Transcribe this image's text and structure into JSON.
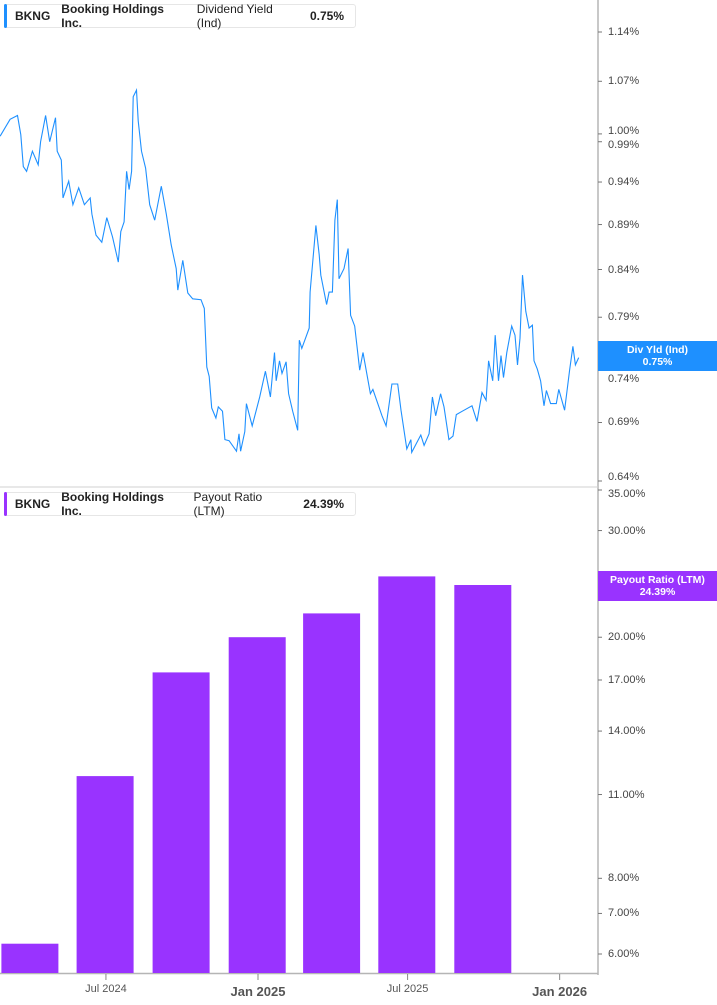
{
  "chart_data": [
    {
      "type": "line",
      "legend": {
        "ticker": "BKNG",
        "company": "Booking Holdings Inc.",
        "metric": "Dividend Yield (Ind)",
        "value": "0.75%"
      },
      "last_value_tag": {
        "label": "Div Yld (Ind)",
        "value": "0.75%"
      },
      "color": "#1e90ff",
      "y_scale": "log",
      "ylim": [
        0.64,
        1.14
      ],
      "y_ticks": [
        "1.14%",
        "1.07%",
        "1.00%",
        "0.99%",
        "0.94%",
        "0.89%",
        "0.84%",
        "0.79%",
        "0.74%",
        "0.69%",
        "0.64%"
      ],
      "y_tick_values": [
        1.14,
        1.07,
        1.0,
        0.99,
        0.94,
        0.89,
        0.84,
        0.79,
        0.74,
        0.69,
        0.64
      ],
      "grid": false,
      "series": [
        {
          "points": [
            [
              "2024-02-24",
              0.997
            ],
            [
              "2024-03-07",
              1.019
            ],
            [
              "2024-03-16",
              1.024
            ],
            [
              "2024-03-20",
              0.999
            ],
            [
              "2024-03-23",
              0.959
            ],
            [
              "2024-03-27",
              0.953
            ],
            [
              "2024-04-03",
              0.978
            ],
            [
              "2024-04-10",
              0.961
            ],
            [
              "2024-04-13",
              0.99
            ],
            [
              "2024-04-19",
              1.024
            ],
            [
              "2024-04-24",
              0.99
            ],
            [
              "2024-05-01",
              1.021
            ],
            [
              "2024-05-03",
              0.978
            ],
            [
              "2024-05-08",
              0.967
            ],
            [
              "2024-05-10",
              0.921
            ],
            [
              "2024-05-17",
              0.941
            ],
            [
              "2024-05-22",
              0.913
            ],
            [
              "2024-05-29",
              0.933
            ],
            [
              "2024-06-05",
              0.913
            ],
            [
              "2024-06-12",
              0.921
            ],
            [
              "2024-06-14",
              0.902
            ],
            [
              "2024-06-19",
              0.878
            ],
            [
              "2024-06-26",
              0.87
            ],
            [
              "2024-07-02",
              0.898
            ],
            [
              "2024-07-09",
              0.876
            ],
            [
              "2024-07-16",
              0.848
            ],
            [
              "2024-07-19",
              0.882
            ],
            [
              "2024-07-23",
              0.893
            ],
            [
              "2024-07-26",
              0.953
            ],
            [
              "2024-07-29",
              0.931
            ],
            [
              "2024-08-01",
              0.953
            ],
            [
              "2024-08-03",
              1.049
            ],
            [
              "2024-08-07",
              1.058
            ],
            [
              "2024-08-09",
              1.017
            ],
            [
              "2024-08-13",
              0.978
            ],
            [
              "2024-08-18",
              0.957
            ],
            [
              "2024-08-23",
              0.913
            ],
            [
              "2024-08-29",
              0.895
            ],
            [
              "2024-09-06",
              0.935
            ],
            [
              "2024-09-12",
              0.902
            ],
            [
              "2024-09-18",
              0.867
            ],
            [
              "2024-09-24",
              0.841
            ],
            [
              "2024-09-26",
              0.818
            ],
            [
              "2024-10-02",
              0.85
            ],
            [
              "2024-10-08",
              0.815
            ],
            [
              "2024-10-14",
              0.809
            ],
            [
              "2024-10-24",
              0.808
            ],
            [
              "2024-10-28",
              0.799
            ],
            [
              "2024-10-31",
              0.741
            ],
            [
              "2024-11-03",
              0.732
            ],
            [
              "2024-11-06",
              0.703
            ],
            [
              "2024-11-11",
              0.694
            ],
            [
              "2024-11-14",
              0.704
            ],
            [
              "2024-11-19",
              0.7
            ],
            [
              "2024-11-22",
              0.675
            ],
            [
              "2024-11-27",
              0.674
            ],
            [
              "2024-12-06",
              0.665
            ],
            [
              "2024-12-09",
              0.68
            ],
            [
              "2024-12-11",
              0.665
            ],
            [
              "2024-12-16",
              0.682
            ],
            [
              "2024-12-18",
              0.707
            ],
            [
              "2024-12-25",
              0.687
            ],
            [
              "2025-01-03",
              0.713
            ],
            [
              "2025-01-10",
              0.737
            ],
            [
              "2025-01-16",
              0.713
            ],
            [
              "2025-01-21",
              0.755
            ],
            [
              "2025-01-23",
              0.728
            ],
            [
              "2025-01-27",
              0.747
            ],
            [
              "2025-01-30",
              0.735
            ],
            [
              "2025-02-04",
              0.746
            ],
            [
              "2025-02-07",
              0.716
            ],
            [
              "2025-02-12",
              0.7
            ],
            [
              "2025-02-18",
              0.683
            ],
            [
              "2025-02-20",
              0.767
            ],
            [
              "2025-02-23",
              0.759
            ],
            [
              "2025-03-04",
              0.779
            ],
            [
              "2025-03-05",
              0.816
            ],
            [
              "2025-03-12",
              0.889
            ],
            [
              "2025-03-16",
              0.856
            ],
            [
              "2025-03-18",
              0.834
            ],
            [
              "2025-03-25",
              0.803
            ],
            [
              "2025-03-28",
              0.816
            ],
            [
              "2025-04-01",
              0.816
            ],
            [
              "2025-04-04",
              0.895
            ],
            [
              "2025-04-07",
              0.919
            ],
            [
              "2025-04-09",
              0.83
            ],
            [
              "2025-04-15",
              0.841
            ],
            [
              "2025-04-20",
              0.863
            ],
            [
              "2025-04-23",
              0.792
            ],
            [
              "2025-04-28",
              0.781
            ],
            [
              "2025-05-04",
              0.738
            ],
            [
              "2025-05-08",
              0.755
            ],
            [
              "2025-05-17",
              0.716
            ],
            [
              "2025-05-20",
              0.72
            ],
            [
              "2025-05-31",
              0.696
            ],
            [
              "2025-06-05",
              0.687
            ],
            [
              "2025-06-12",
              0.725
            ],
            [
              "2025-06-19",
              0.725
            ],
            [
              "2025-06-23",
              0.701
            ],
            [
              "2025-06-30",
              0.667
            ],
            [
              "2025-07-05",
              0.675
            ],
            [
              "2025-07-06",
              0.664
            ],
            [
              "2025-07-17",
              0.679
            ],
            [
              "2025-07-21",
              0.67
            ],
            [
              "2025-07-27",
              0.68
            ],
            [
              "2025-07-31",
              0.713
            ],
            [
              "2025-08-04",
              0.696
            ],
            [
              "2025-08-10",
              0.716
            ],
            [
              "2025-08-14",
              0.704
            ],
            [
              "2025-08-20",
              0.675
            ],
            [
              "2025-08-25",
              0.678
            ],
            [
              "2025-08-29",
              0.697
            ],
            [
              "2025-09-05",
              0.7
            ],
            [
              "2025-09-17",
              0.705
            ],
            [
              "2025-09-23",
              0.691
            ],
            [
              "2025-09-29",
              0.717
            ],
            [
              "2025-10-04",
              0.71
            ],
            [
              "2025-10-07",
              0.747
            ],
            [
              "2025-10-12",
              0.728
            ],
            [
              "2025-10-15",
              0.772
            ],
            [
              "2025-10-19",
              0.728
            ],
            [
              "2025-10-22",
              0.752
            ],
            [
              "2025-10-25",
              0.731
            ],
            [
              "2025-10-29",
              0.755
            ],
            [
              "2025-11-04",
              0.781
            ],
            [
              "2025-11-08",
              0.772
            ],
            [
              "2025-11-11",
              0.743
            ],
            [
              "2025-11-14",
              0.769
            ],
            [
              "2025-11-17",
              0.834
            ],
            [
              "2025-11-21",
              0.796
            ],
            [
              "2025-11-25",
              0.779
            ],
            [
              "2025-11-29",
              0.782
            ],
            [
              "2025-12-01",
              0.747
            ],
            [
              "2025-12-05",
              0.739
            ],
            [
              "2025-12-09",
              0.728
            ],
            [
              "2025-12-13",
              0.705
            ],
            [
              "2025-12-16",
              0.719
            ],
            [
              "2025-12-21",
              0.707
            ],
            [
              "2025-12-28",
              0.707
            ],
            [
              "2025-12-31",
              0.72
            ],
            [
              "2026-01-07",
              0.701
            ],
            [
              "2026-01-13",
              0.738
            ],
            [
              "2026-01-17",
              0.761
            ],
            [
              "2026-01-20",
              0.743
            ],
            [
              "2026-01-24",
              0.75
            ]
          ]
        }
      ]
    },
    {
      "type": "bar",
      "legend": {
        "ticker": "BKNG",
        "company": "Booking Holdings Inc.",
        "metric": "Payout Ratio (LTM)",
        "value": "24.39%"
      },
      "last_value_tag": {
        "label": "Payout Ratio (LTM)",
        "value": "24.39%"
      },
      "color": "#9933ff",
      "y_scale": "log",
      "ylim": [
        6,
        35
      ],
      "y_ticks": [
        "35.00%",
        "30.00%",
        "20.00%",
        "17.00%",
        "14.00%",
        "11.00%",
        "8.00%",
        "7.00%",
        "6.00%"
      ],
      "y_tick_values": [
        35,
        30,
        20,
        17,
        14,
        11,
        8,
        7,
        6
      ],
      "grid": false,
      "x": [
        "2024-03-31",
        "2024-06-30",
        "2024-09-30",
        "2024-12-31",
        "2025-03-31",
        "2025-06-30",
        "2025-09-30"
      ],
      "values": [
        6.24,
        11.8,
        17.5,
        20.0,
        21.9,
        25.2,
        24.39
      ]
    }
  ],
  "x_axis": {
    "ticks": [
      {
        "label": "Jul 2024",
        "date": "2024-07-01",
        "major": false
      },
      {
        "label": "Jan 2025",
        "date": "2025-01-01",
        "major": true
      },
      {
        "label": "Jul 2025",
        "date": "2025-07-01",
        "major": false
      },
      {
        "label": "Jan 2026",
        "date": "2026-01-01",
        "major": true
      }
    ]
  }
}
